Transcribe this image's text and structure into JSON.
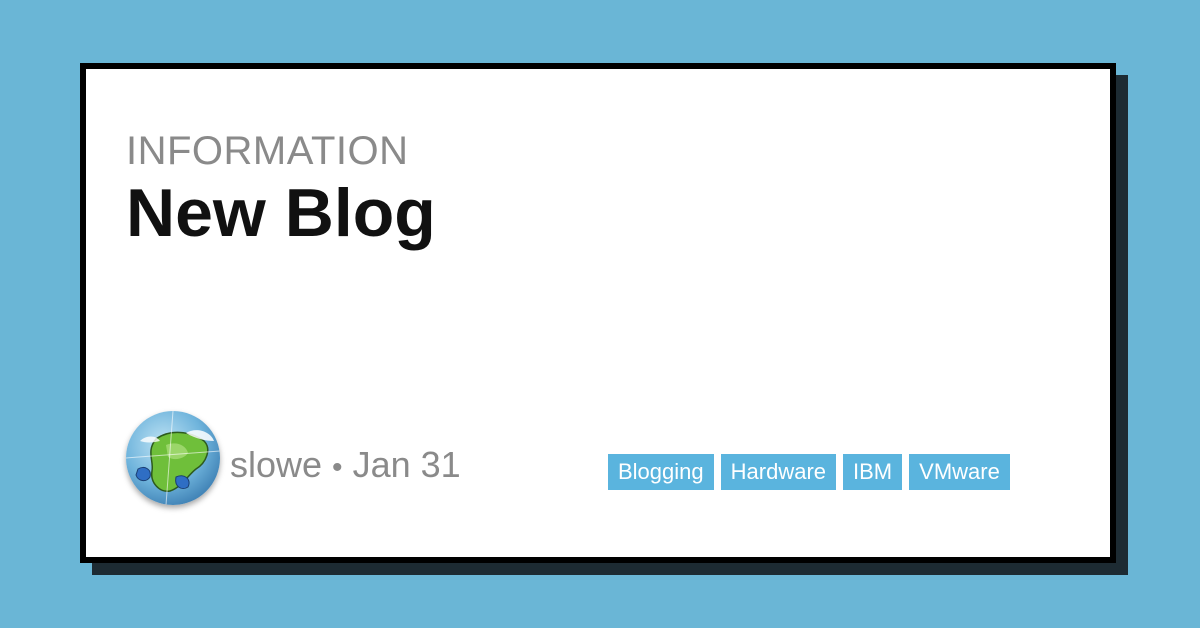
{
  "card": {
    "category": "INFORMATION",
    "title": "New Blog"
  },
  "author": {
    "name": "slowe",
    "separator": "•",
    "date": "Jan 31",
    "avatar_icon": "globe-map-avatar"
  },
  "tags": [
    "Blogging",
    "Hardware",
    "IBM",
    "VMware"
  ],
  "colors": {
    "background": "#6ab6d6",
    "card": "#ffffff",
    "border": "#000000",
    "tag": "#5ab4de"
  }
}
